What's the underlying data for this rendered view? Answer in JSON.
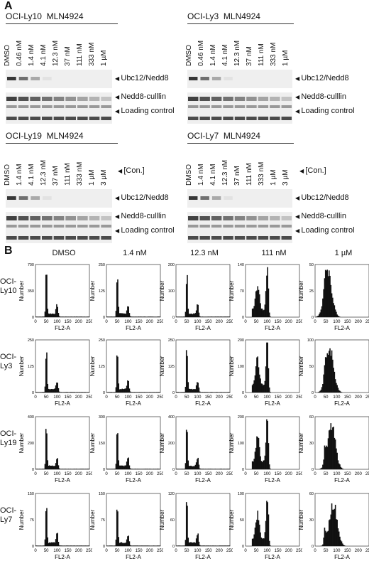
{
  "panel_a": {
    "letter": "A",
    "blots": [
      {
        "cell": "OCI-Ly10",
        "drug": "MLN4924",
        "lanes": [
          "DMSO",
          "0.46 nM",
          "1.4 nM",
          "4.1 nM",
          "12.3 nM",
          "37 nM",
          "111 nM",
          "333 nM",
          "1 µM"
        ],
        "con_label": "",
        "bands": [
          "Ubc12/Nedd8",
          "Nedd8-culllin",
          "Loading control"
        ]
      },
      {
        "cell": "OCI-Ly3",
        "drug": "MLN4924",
        "lanes": [
          "DMSO",
          "0.46 nM",
          "1.4 nM",
          "4.1 nM",
          "12.3 nM",
          "37 nM",
          "111 nM",
          "333 nM",
          "1 µM"
        ],
        "con_label": "",
        "bands": [
          "Ubc12/Nedd8",
          "Nedd8-culllin",
          "Loading control"
        ]
      },
      {
        "cell": "OCI-Ly19",
        "drug": "MLN4924",
        "lanes": [
          "DMSO",
          "1.4 nM",
          "4.1 nM",
          "12.3 nM",
          "37 nM",
          "111 nM",
          "333 nM",
          "1 µM",
          "3 µM"
        ],
        "con_label": "[Con.]",
        "bands": [
          "Ubc12/Nedd8",
          "Nedd8-culllin",
          "Loading control"
        ]
      },
      {
        "cell": "OCI-Ly7",
        "drug": "MLN4924",
        "lanes": [
          "DMSO",
          "1.4 nM",
          "4.1 nM",
          "12.3 nM",
          "37 nM",
          "111 nM",
          "333 nM",
          "1 µM",
          "3 µM"
        ],
        "con_label": "[Con.]",
        "bands": [
          "Ubc12/Nedd8",
          "Nedd8-culllin",
          "Loading control"
        ]
      }
    ]
  },
  "panel_b": {
    "letter": "B",
    "columns": [
      "DMSO",
      "1.4 nM",
      "12.3 nM",
      "111 nM",
      "1 µM"
    ],
    "rows": [
      {
        "line1": "OCI-",
        "line2": "Ly10"
      },
      {
        "line1": "OCI-",
        "line2": "Ly3"
      },
      {
        "line1": "OCI-",
        "line2": "Ly19"
      },
      {
        "line1": "OCI-",
        "line2": "Ly7"
      }
    ],
    "xlabel": "FL2-A",
    "ylabel": "Number",
    "xticks": [
      0,
      50,
      100,
      150,
      200,
      250
    ],
    "ymax": [
      [
        700,
        250,
        200,
        140,
        50
      ],
      [
        250,
        250,
        250,
        200,
        100
      ],
      [
        400,
        300,
        400,
        200,
        60
      ],
      [
        150,
        150,
        120,
        100,
        60
      ]
    ]
  },
  "chart_data": {
    "type": "histogram",
    "description_source": "flow cytometry DNA content",
    "x_range": [
      0,
      250
    ],
    "grid": "5 columns x 4 rows"
  }
}
